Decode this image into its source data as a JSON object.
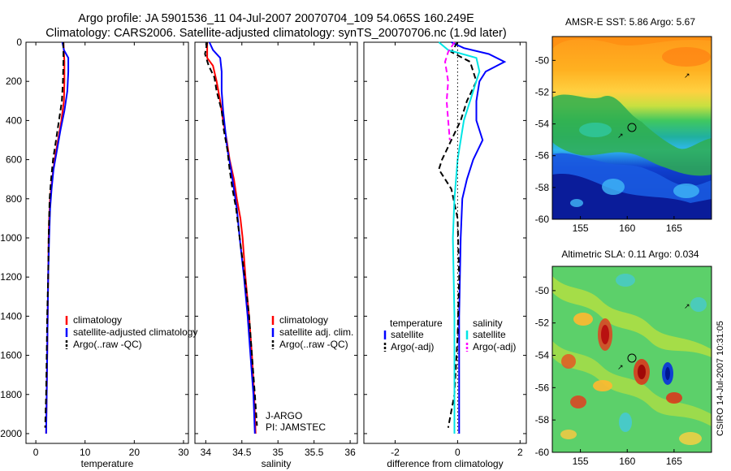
{
  "title": {
    "line1": "Argo profile: JA 5901536_11 04-Jul-2007 20070704_109 54.065S 160.249E",
    "line2": "Climatology: CARS2006. Satellite-adjusted climatology: synTS_20070706.nc (1.9d later)"
  },
  "credit": "CSIRO 14-Jul-2007 10:31:05",
  "colors": {
    "climatology": "#ff0000",
    "satellite": "#0000ff",
    "argo": "#000000",
    "salinity_satellite": "#00e5e5",
    "salinity_argo": "#ff00ff"
  },
  "chart_data": [
    {
      "type": "line",
      "id": "temperature",
      "xlabel": "temperature",
      "ylabel": "",
      "xlim": [
        -2,
        31
      ],
      "ylim": [
        0,
        2050
      ],
      "y_reversed": true,
      "xticks": [
        "0",
        "10",
        "20",
        "30"
      ],
      "xtick_values": [
        0,
        10,
        20,
        30
      ],
      "yticks": [
        "0",
        "200",
        "400",
        "600",
        "800",
        "1000",
        "1200",
        "1400",
        "1600",
        "1800",
        "2000"
      ],
      "ytick_values": [
        0,
        200,
        400,
        600,
        800,
        1000,
        1200,
        1400,
        1600,
        1800,
        2000
      ],
      "legend": [
        "climatology",
        "satellite-adjusted climatology",
        "Argo(..raw -QC)"
      ],
      "series": [
        {
          "name": "climatology",
          "color": "#ff0000",
          "style": "solid",
          "points": [
            [
              5.6,
              0
            ],
            [
              5.7,
              50
            ],
            [
              5.8,
              100
            ],
            [
              5.8,
              200
            ],
            [
              5.7,
              300
            ],
            [
              5.2,
              400
            ],
            [
              4.5,
              500
            ],
            [
              3.8,
              600
            ],
            [
              3.3,
              700
            ],
            [
              2.9,
              800
            ],
            [
              2.7,
              900
            ],
            [
              2.6,
              1000
            ],
            [
              2.5,
              1200
            ],
            [
              2.4,
              1400
            ],
            [
              2.3,
              1600
            ],
            [
              2.2,
              1800
            ],
            [
              2.1,
              2000
            ]
          ]
        },
        {
          "name": "satellite-adjusted climatology",
          "color": "#0000ff",
          "style": "solid",
          "points": [
            [
              5.4,
              0
            ],
            [
              5.7,
              40
            ],
            [
              6.6,
              80
            ],
            [
              6.6,
              150
            ],
            [
              6.4,
              250
            ],
            [
              5.8,
              350
            ],
            [
              5.0,
              450
            ],
            [
              4.3,
              550
            ],
            [
              3.6,
              650
            ],
            [
              3.2,
              750
            ],
            [
              2.9,
              850
            ],
            [
              2.7,
              1000
            ],
            [
              2.5,
              1200
            ],
            [
              2.4,
              1400
            ],
            [
              2.3,
              1600
            ],
            [
              2.2,
              1800
            ],
            [
              2.1,
              2000
            ]
          ]
        },
        {
          "name": "Argo(..raw -QC)",
          "color": "#000000",
          "style": "dashed",
          "points": [
            [
              5.6,
              0
            ],
            [
              5.6,
              100
            ],
            [
              5.5,
              200
            ],
            [
              5.3,
              300
            ],
            [
              4.7,
              400
            ],
            [
              4.1,
              500
            ],
            [
              3.5,
              600
            ],
            [
              3.1,
              700
            ],
            [
              2.8,
              800
            ],
            [
              2.7,
              900
            ],
            [
              2.6,
              1000
            ],
            [
              2.5,
              1200
            ],
            [
              2.3,
              1400
            ],
            [
              2.2,
              1600
            ],
            [
              2.1,
              1800
            ],
            [
              1.9,
              1970
            ]
          ]
        }
      ]
    },
    {
      "type": "line",
      "id": "salinity",
      "xlabel": "salinity",
      "xlim": [
        33.85,
        36.1
      ],
      "ylim": [
        0,
        2050
      ],
      "y_reversed": true,
      "xticks": [
        "34",
        "34.5",
        "35",
        "35.5",
        "36"
      ],
      "xtick_values": [
        34,
        34.5,
        35,
        35.5,
        36
      ],
      "legend": [
        "climatology",
        "satellite adj. clim.",
        "Argo(..raw -QC)"
      ],
      "annotation": [
        "J-ARGO",
        "PI: JAMSTEC"
      ],
      "series": [
        {
          "name": "climatology",
          "color": "#ff0000",
          "style": "solid",
          "points": [
            [
              34.02,
              0
            ],
            [
              34.02,
              80
            ],
            [
              34.1,
              120
            ],
            [
              34.15,
              200
            ],
            [
              34.2,
              300
            ],
            [
              34.24,
              400
            ],
            [
              34.29,
              500
            ],
            [
              34.33,
              600
            ],
            [
              34.39,
              700
            ],
            [
              34.43,
              800
            ],
            [
              34.48,
              900
            ],
            [
              34.51,
              1000
            ],
            [
              34.55,
              1200
            ],
            [
              34.6,
              1400
            ],
            [
              34.64,
              1600
            ],
            [
              34.67,
              1800
            ],
            [
              34.69,
              2000
            ]
          ]
        },
        {
          "name": "satellite adj. clim.",
          "color": "#0000ff",
          "style": "solid",
          "points": [
            [
              34.05,
              0
            ],
            [
              34.1,
              40
            ],
            [
              34.2,
              80
            ],
            [
              34.22,
              150
            ],
            [
              34.22,
              250
            ],
            [
              34.24,
              350
            ],
            [
              34.27,
              450
            ],
            [
              34.3,
              550
            ],
            [
              34.35,
              650
            ],
            [
              34.39,
              750
            ],
            [
              34.43,
              850
            ],
            [
              34.47,
              1000
            ],
            [
              34.53,
              1200
            ],
            [
              34.58,
              1400
            ],
            [
              34.62,
              1600
            ],
            [
              34.66,
              1800
            ],
            [
              34.68,
              2000
            ]
          ]
        },
        {
          "name": "Argo(..raw -QC)",
          "color": "#000000",
          "style": "dashed",
          "points": [
            [
              34.02,
              0
            ],
            [
              33.99,
              60
            ],
            [
              34.04,
              120
            ],
            [
              34.12,
              180
            ],
            [
              34.15,
              250
            ],
            [
              34.22,
              350
            ],
            [
              34.25,
              450
            ],
            [
              34.3,
              550
            ],
            [
              34.33,
              650
            ],
            [
              34.37,
              750
            ],
            [
              34.42,
              850
            ],
            [
              34.47,
              1000
            ],
            [
              34.54,
              1200
            ],
            [
              34.6,
              1400
            ],
            [
              34.64,
              1600
            ],
            [
              34.68,
              1800
            ],
            [
              34.71,
              1960
            ]
          ]
        }
      ]
    },
    {
      "type": "line",
      "id": "difference",
      "xlabel": "difference from climatology",
      "xlim": [
        -3,
        2.2
      ],
      "ylim": [
        0,
        2050
      ],
      "y_reversed": true,
      "xticks": [
        "-2",
        "0",
        "2"
      ],
      "xtick_values": [
        -2,
        0,
        2
      ],
      "legend_temperature_title": "temperature",
      "legend_salinity_title": "salinity",
      "legend_temperature": [
        "satellite",
        "Argo(-adj)"
      ],
      "legend_salinity": [
        "satellite",
        "Argo(-adj)"
      ],
      "series": [
        {
          "name": "temperature satellite",
          "color": "#0000ff",
          "style": "solid",
          "points": [
            [
              -0.2,
              0
            ],
            [
              0.2,
              30
            ],
            [
              1.0,
              60
            ],
            [
              1.5,
              100
            ],
            [
              0.9,
              150
            ],
            [
              0.7,
              200
            ],
            [
              0.6,
              300
            ],
            [
              0.6,
              400
            ],
            [
              0.8,
              500
            ],
            [
              0.5,
              600
            ],
            [
              0.3,
              700
            ],
            [
              0.15,
              800
            ],
            [
              0.1,
              1000
            ],
            [
              0.05,
              1400
            ],
            [
              0.05,
              1800
            ],
            [
              0.05,
              2000
            ]
          ]
        },
        {
          "name": "temperature Argo(-adj)",
          "color": "#000000",
          "style": "dashed",
          "points": [
            [
              0.0,
              0
            ],
            [
              -0.2,
              50
            ],
            [
              0.4,
              100
            ],
            [
              0.6,
              200
            ],
            [
              0.3,
              300
            ],
            [
              0.1,
              400
            ],
            [
              -0.2,
              500
            ],
            [
              -0.5,
              600
            ],
            [
              -0.6,
              650
            ],
            [
              -0.2,
              750
            ],
            [
              0.0,
              900
            ],
            [
              0.05,
              1200
            ],
            [
              0.0,
              1500
            ],
            [
              -0.1,
              1800
            ],
            [
              -0.3,
              1970
            ]
          ]
        },
        {
          "name": "salinity satellite",
          "color": "#00e5e5",
          "style": "solid",
          "points": [
            [
              -0.6,
              0
            ],
            [
              -0.3,
              40
            ],
            [
              0.6,
              80
            ],
            [
              0.7,
              150
            ],
            [
              0.5,
              250
            ],
            [
              0.2,
              400
            ],
            [
              0.0,
              600
            ],
            [
              -0.1,
              800
            ],
            [
              -0.15,
              1000
            ],
            [
              -0.1,
              1400
            ],
            [
              -0.1,
              1800
            ],
            [
              -0.1,
              2000
            ]
          ]
        },
        {
          "name": "salinity Argo(-adj)",
          "color": "#ff00ff",
          "style": "dashed",
          "points": [
            [
              -0.1,
              0
            ],
            [
              -0.3,
              50
            ],
            [
              -0.4,
              100
            ],
            [
              -0.3,
              200
            ],
            [
              -0.35,
              300
            ],
            [
              -0.3,
              400
            ],
            [
              -0.25,
              500
            ]
          ]
        },
        {
          "name": "zero line",
          "color": "#000000",
          "style": "dotted",
          "points": [
            [
              0,
              0
            ],
            [
              0,
              2000
            ]
          ]
        }
      ]
    },
    {
      "type": "heatmap",
      "id": "sst-map",
      "title": "AMSR-E SST: 5.86 Argo: 5.67",
      "xlim": [
        152,
        169
      ],
      "ylim": [
        -60,
        -48.5
      ],
      "xticks": [
        "155",
        "160",
        "165"
      ],
      "xtick_values": [
        155,
        160,
        165
      ],
      "yticks": [
        "-50",
        "-52",
        "-54",
        "-56",
        "-58",
        "-60"
      ],
      "ytick_values": [
        -50,
        -52,
        -54,
        -56,
        -58,
        -60
      ],
      "profile_marker": [
        160.249,
        -54.065
      ],
      "float_track": [
        [
          158.8,
          -54.5
        ],
        [
          166.1,
          -50.6
        ]
      ]
    },
    {
      "type": "heatmap",
      "id": "sla-map",
      "title": "Altimetric SLA: 0.11 Argo: 0.034",
      "xlim": [
        152,
        169
      ],
      "ylim": [
        -60,
        -48.5
      ],
      "xticks": [
        "155",
        "160",
        "165"
      ],
      "xtick_values": [
        155,
        160,
        165
      ],
      "yticks": [
        "-50",
        "-52",
        "-54",
        "-56",
        "-58",
        "-60"
      ],
      "ytick_values": [
        -50,
        -52,
        -54,
        -56,
        -58,
        -60
      ],
      "profile_marker": [
        160.249,
        -54.065
      ],
      "float_track": [
        [
          158.8,
          -54.5
        ],
        [
          166.1,
          -50.6
        ]
      ]
    }
  ]
}
